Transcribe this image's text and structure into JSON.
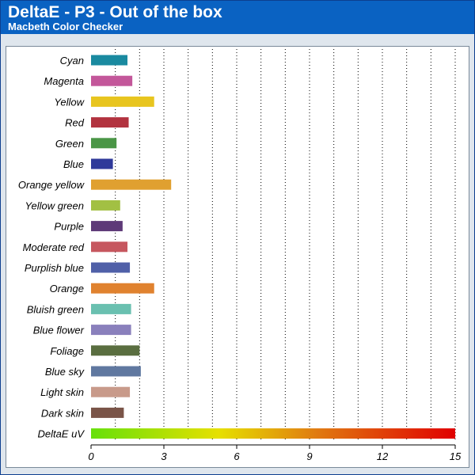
{
  "header": {
    "title": "DeltaE - P3 - Out of the box",
    "subtitle": "Macbeth Color Checker"
  },
  "colors": {
    "header_bg": "#0a62c2",
    "frame_bg": "#dfe6ed",
    "gradient": [
      "#66e00a",
      "#e6e000",
      "#e07a10",
      "#e00000"
    ]
  },
  "chart_data": {
    "type": "bar",
    "orientation": "horizontal",
    "title": "DeltaE - P3 - Out of the box",
    "subtitle": "Macbeth Color Checker",
    "xlim": [
      0,
      15
    ],
    "xticks": [
      0,
      3,
      6,
      9,
      12,
      15
    ],
    "grid": "vertical dotted",
    "categories": [
      "Cyan",
      "Magenta",
      "Yellow",
      "Red",
      "Green",
      "Blue",
      "Orange yellow",
      "Yellow green",
      "Purple",
      "Moderate red",
      "Purplish blue",
      "Orange",
      "Bluish green",
      "Blue flower",
      "Foliage",
      "Blue sky",
      "Light skin",
      "Dark skin",
      "DeltaE uV"
    ],
    "values": [
      1.5,
      1.7,
      2.6,
      1.55,
      1.05,
      0.9,
      3.3,
      1.2,
      1.3,
      1.5,
      1.6,
      2.6,
      1.65,
      1.65,
      2.0,
      2.05,
      1.6,
      1.35,
      15
    ],
    "bar_colors": [
      "#1a8aa0",
      "#c3579a",
      "#e8c51f",
      "#b2333f",
      "#4a9646",
      "#2f3a9a",
      "#e0a030",
      "#a2c043",
      "#5e3a78",
      "#c6575f",
      "#5060a8",
      "#e0822f",
      "#6ac0b0",
      "#8a80bc",
      "#5a6e40",
      "#6078a0",
      "#c89a8a",
      "#7a5448",
      "gradient"
    ]
  }
}
